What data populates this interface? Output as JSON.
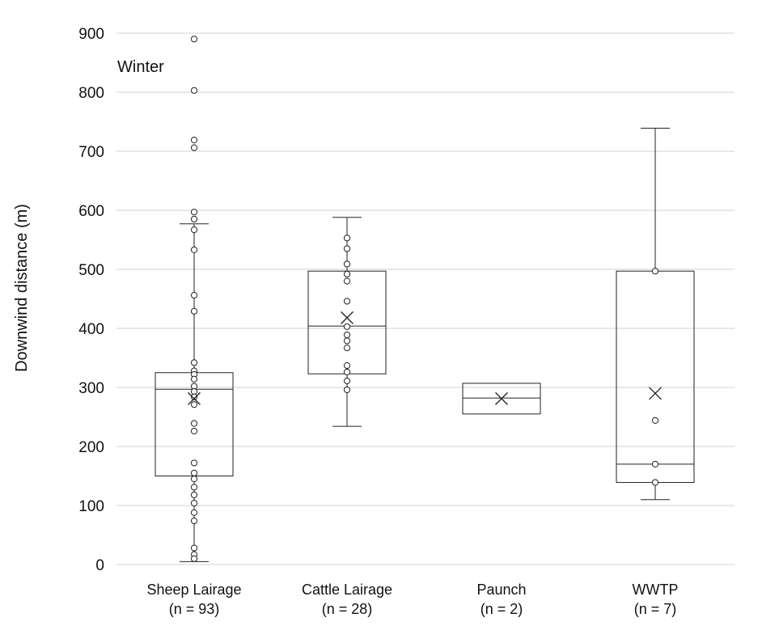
{
  "chart_data": {
    "type": "box",
    "title": "",
    "annotation": "Winter",
    "xlabel": "",
    "ylabel": "Downwind distance (m)",
    "ylim": [
      0,
      900
    ],
    "yticks": [
      0,
      100,
      200,
      300,
      400,
      500,
      600,
      700,
      800,
      900
    ],
    "grid": true,
    "colors": {
      "box_stroke": "#222222",
      "grid": "#d0d0d0",
      "background": "#ffffff"
    },
    "categories": [
      {
        "label": "Sheep Lairage",
        "n_label": "(n = 93)",
        "min": 5,
        "q1": 150,
        "median": 297,
        "q3": 325,
        "max": 577,
        "mean": 281,
        "points": [
          890,
          803,
          719,
          706,
          597,
          585,
          567,
          533,
          456,
          429,
          342,
          328,
          322,
          314,
          302,
          293,
          284,
          271,
          239,
          226,
          172,
          155,
          145,
          131,
          118,
          104,
          88,
          74,
          28,
          17,
          10
        ]
      },
      {
        "label": "Cattle Lairage",
        "n_label": "(n = 28)",
        "min": 234,
        "q1": 323,
        "median": 404,
        "q3": 497,
        "max": 588,
        "mean": 418,
        "points": [
          553,
          535,
          509,
          492,
          480,
          446,
          403,
          389,
          379,
          367,
          337,
          326,
          311,
          296
        ]
      },
      {
        "label": "Paunch",
        "n_label": "(n = 2)",
        "min": 255,
        "q1": 255,
        "median": 282,
        "q3": 307,
        "max": 307,
        "mean": 281,
        "points": []
      },
      {
        "label": "WWTP",
        "n_label": "(n = 7)",
        "min": 110,
        "q1": 139,
        "median": 170,
        "q3": 497,
        "max": 739,
        "mean": 290,
        "points": [
          497,
          244,
          170,
          139
        ]
      }
    ]
  }
}
